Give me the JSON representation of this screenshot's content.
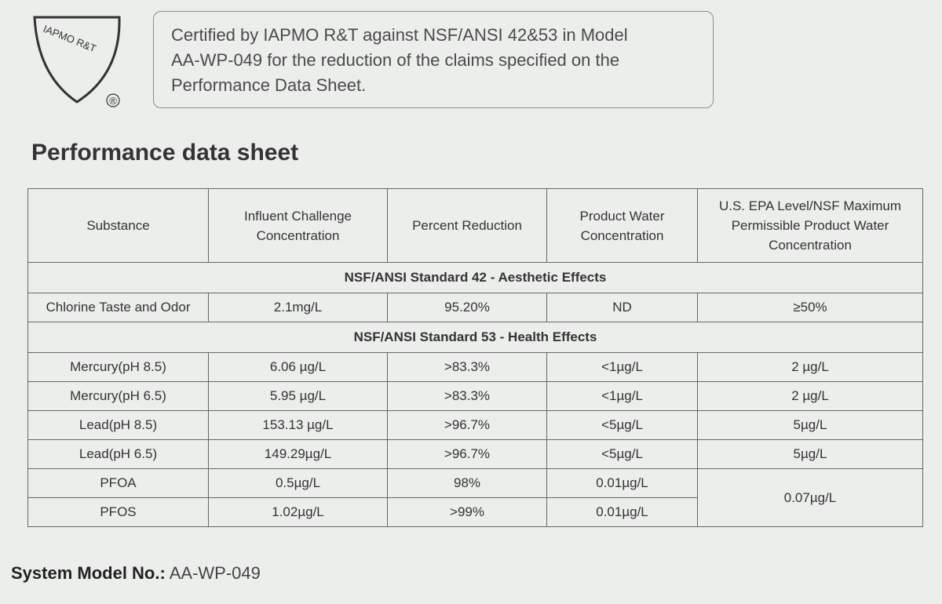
{
  "logo": {
    "text": "IAPMO R&T",
    "mark": "®"
  },
  "certification": {
    "lines": [
      "Certified by IAPMO R&T against NSF/ANSI 42&53 in Model",
      "AA-WP-049 for the reduction of the claims specified on the",
      "Performance Data Sheet."
    ]
  },
  "title": "Performance data sheet",
  "table": {
    "headers": [
      "Substance",
      "Influent Challenge Concentration",
      "Percent Reduction",
      "Product Water Concentration",
      "U.S. EPA Level/NSF Maximum Permissible Product Water Concentration"
    ],
    "sections": [
      {
        "title": "NSF/ANSI Standard 42 - Aesthetic Effects",
        "rows": [
          [
            "Chlorine Taste and Odor",
            "2.1mg/L",
            "95.20%",
            "ND",
            "≥50%"
          ]
        ]
      },
      {
        "title": "NSF/ANSI Standard 53 - Health Effects",
        "rows": [
          [
            "Mercury(pH 8.5)",
            "6.06 µg/L",
            ">83.3%",
            "<1µg/L",
            "2 µg/L"
          ],
          [
            "Mercury(pH 6.5)",
            "5.95 µg/L",
            ">83.3%",
            "<1µg/L",
            "2 µg/L"
          ],
          [
            "Lead(pH 8.5)",
            "153.13 µg/L",
            ">96.7%",
            "<5µg/L",
            "5µg/L"
          ],
          [
            "Lead(pH 6.5)",
            "149.29µg/L",
            ">96.7%",
            "<5µg/L",
            "5µg/L"
          ],
          [
            "PFOA",
            "0.5µg/L",
            "98%",
            "0.01µg/L",
            "0.07µg/L"
          ],
          [
            "PFOS",
            "1.02µg/L",
            ">99%",
            "0.01µg/L"
          ]
        ]
      }
    ]
  },
  "footer": {
    "label": "System Model No.:",
    "value": "AA-WP-049"
  }
}
